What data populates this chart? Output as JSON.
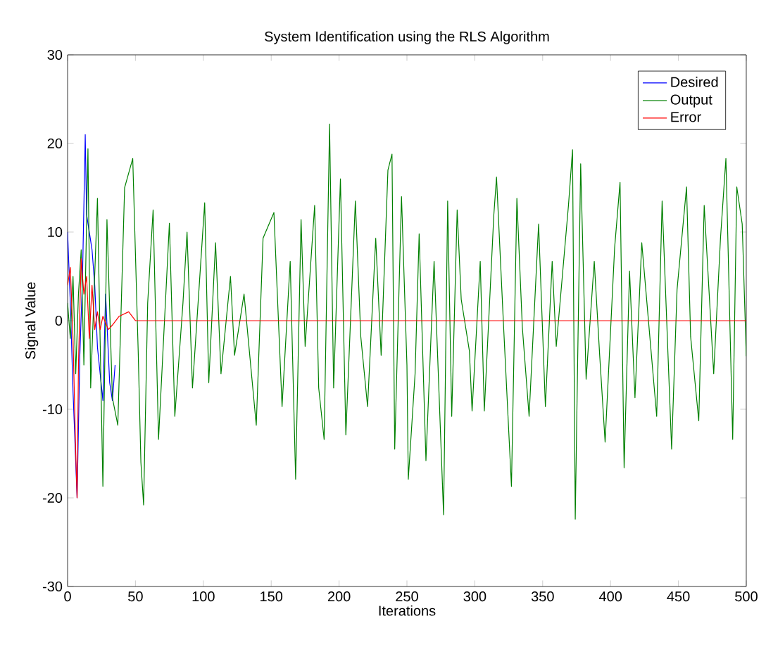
{
  "chart_data": {
    "type": "line",
    "title": "System Identification using the RLS Algorithm",
    "xlabel": "Iterations",
    "ylabel": "Signal Value",
    "xlim": [
      0,
      500
    ],
    "ylim": [
      -30,
      30
    ],
    "xticks": [
      0,
      50,
      100,
      150,
      200,
      250,
      300,
      350,
      400,
      450,
      500
    ],
    "yticks": [
      -30,
      -20,
      -10,
      0,
      10,
      20,
      30
    ],
    "grid": false,
    "legend": "top right",
    "marker": "none",
    "line_style": "solid",
    "series": [
      {
        "name": "Desired",
        "color": "#0000ff",
        "x": [
          0,
          2,
          4,
          5,
          7,
          9,
          11,
          13,
          14,
          16,
          18,
          20,
          22,
          26,
          28,
          31,
          33,
          35
        ],
        "values": [
          10,
          2,
          -8,
          -12,
          -20,
          -4,
          5,
          21,
          12,
          null,
          8,
          4,
          -3,
          -9,
          3,
          -7,
          -9,
          -5
        ]
      },
      {
        "name": "Output",
        "color": "#008000",
        "x": [
          0,
          2,
          4,
          6,
          8,
          10,
          12,
          15,
          17,
          22,
          26,
          29,
          33,
          37,
          42,
          48,
          52,
          54,
          56,
          59,
          63,
          67,
          75,
          79,
          85,
          88,
          92,
          101,
          104,
          109,
          113,
          120,
          123,
          130,
          139,
          144,
          152,
          158,
          164,
          168,
          172,
          175,
          182,
          185,
          189,
          193,
          196,
          201,
          205,
          212,
          216,
          221,
          227,
          231,
          236,
          239,
          241,
          246,
          250,
          251,
          256,
          259,
          264,
          270,
          277,
          280,
          283,
          287,
          290,
          296,
          298,
          304,
          307,
          314,
          316,
          321,
          327,
          331,
          335,
          340,
          347,
          352,
          357,
          360,
          369,
          372,
          374,
          378,
          382,
          388,
          392,
          396,
          403,
          407,
          410,
          414,
          418,
          423,
          434,
          438,
          445,
          449,
          456,
          459,
          465,
          469,
          476,
          481,
          485,
          490,
          493,
          497,
          500
        ],
        "values": [
          2,
          -2,
          5,
          -6,
          3,
          8,
          -5,
          19.4,
          -7.6,
          13.8,
          -18.7,
          11.4,
          -8.7,
          -11.8,
          15,
          18.3,
          -3.4,
          -16,
          -20.8,
          2,
          12.5,
          -13.4,
          11,
          -10.8,
          2,
          10,
          -7.6,
          13.3,
          -7,
          8.8,
          -6,
          5,
          -3.9,
          3,
          -11.8,
          9.3,
          12.2,
          -9.7,
          6.7,
          -17.9,
          11.4,
          -2.9,
          13,
          -7.6,
          -13.4,
          22.2,
          -7.6,
          16,
          -12.9,
          13.5,
          -1.8,
          -9.7,
          9.3,
          -3.9,
          17,
          18.8,
          -14.5,
          14,
          -5,
          -17.9,
          -6,
          9.8,
          -15.8,
          6.7,
          -21.9,
          13.5,
          -10.8,
          12.5,
          2.4,
          -3.4,
          -10.2,
          6.7,
          -10.2,
          11.9,
          16.2,
          0,
          -18.7,
          13.8,
          -0.7,
          -10.8,
          10.9,
          -9.7,
          6.7,
          -2.9,
          13,
          19.3,
          -22.4,
          17.7,
          -6.6,
          6.7,
          -3.9,
          -13.7,
          8.2,
          15.6,
          -16.6,
          5.6,
          -8.7,
          8.8,
          -10.8,
          13.5,
          -14.5,
          3.5,
          15.1,
          -1.8,
          -11.3,
          13,
          -6,
          9.3,
          18.3,
          -13.4,
          15.1,
          10.9,
          -4
        ]
      },
      {
        "name": "Error",
        "color": "#ff0000",
        "x": [
          0,
          2,
          4,
          6,
          7,
          8,
          10,
          12,
          14,
          16,
          18,
          20,
          22,
          24,
          26,
          30,
          33,
          38,
          45,
          50,
          500
        ],
        "values": [
          4,
          6,
          -2,
          -15,
          -20,
          -5,
          7,
          3,
          5,
          -2,
          4,
          -1,
          1,
          -1,
          0.5,
          -1,
          -0.5,
          0.5,
          1,
          0,
          0
        ]
      }
    ]
  }
}
